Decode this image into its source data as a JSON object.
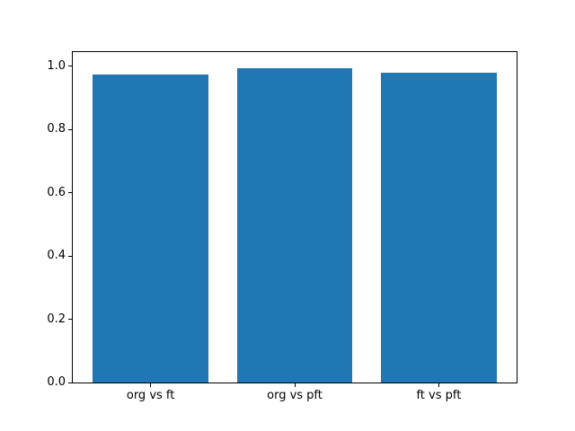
{
  "figure": {
    "background_color": "#ffffff",
    "title": ""
  },
  "chart_data": {
    "type": "bar",
    "title": "",
    "xlabel": "",
    "ylabel": "",
    "categories": [
      "org vs ft",
      "org vs pft",
      "ft vs pft"
    ],
    "values": [
      0.975,
      0.995,
      0.98
    ],
    "bar_color": "#1f77b4",
    "bar_width": 0.8,
    "xlim": [
      -0.54,
      2.54
    ],
    "ylim": [
      0,
      1.045
    ],
    "yticks": [
      0.0,
      0.2,
      0.4,
      0.6,
      0.8,
      1.0
    ],
    "ytick_labels": [
      "0.0",
      "0.2",
      "0.4",
      "0.6",
      "0.8",
      "1.0"
    ],
    "grid": false,
    "legend": "none",
    "spine_color": "#000000"
  }
}
